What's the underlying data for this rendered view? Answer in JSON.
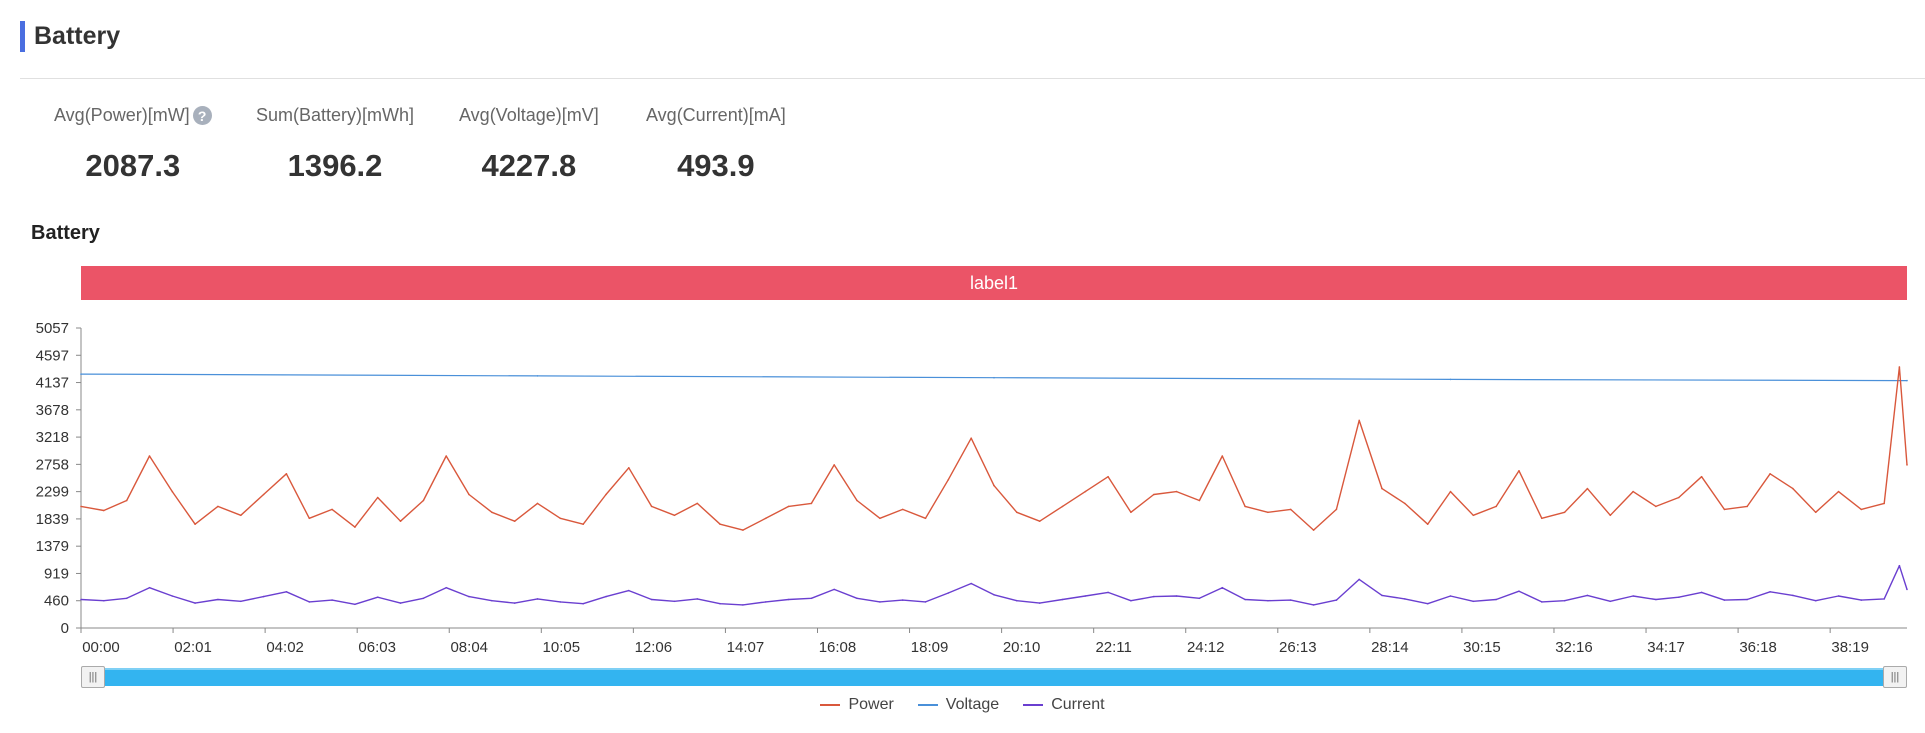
{
  "page": {
    "title": "Battery"
  },
  "metrics": [
    {
      "label": "Avg(Power)[mW]",
      "value": "2087.3",
      "help": true
    },
    {
      "label": "Sum(Battery)[mWh]",
      "value": "1396.2"
    },
    {
      "label": "Avg(Voltage)[mV]",
      "value": "4227.8"
    },
    {
      "label": "Avg(Current)[mA]",
      "value": "493.9"
    }
  ],
  "help_icon": {
    "glyph": "?",
    "icon": "question-circle-icon"
  },
  "chart_title": "Battery",
  "label_band": {
    "text": "label1",
    "color": "#eb5467"
  },
  "slider": {
    "start": 0,
    "end": 1,
    "handle_glyph": "|||"
  },
  "chart_data": {
    "type": "line",
    "title": "Battery",
    "y_ticks": [
      "5057",
      "4597",
      "4137",
      "3678",
      "3218",
      "2758",
      "2299",
      "1839",
      "1379",
      "919",
      "460",
      "0"
    ],
    "ylim": [
      0,
      5057
    ],
    "x_ticks": [
      "00:00",
      "02:01",
      "04:02",
      "06:03",
      "08:04",
      "10:05",
      "12:06",
      "14:07",
      "16:08",
      "18:09",
      "20:10",
      "22:11",
      "24:12",
      "26:13",
      "28:14",
      "30:15",
      "32:16",
      "34:17",
      "36:18",
      "38:19"
    ],
    "x_range_seconds": [
      0,
      2400
    ],
    "grid": false,
    "legend_position": "bottom",
    "series": [
      {
        "name": "Power",
        "color": "#d9583c",
        "x_seconds": [
          0,
          30,
          60,
          90,
          120,
          150,
          180,
          210,
          240,
          270,
          300,
          330,
          360,
          390,
          420,
          450,
          480,
          510,
          540,
          570,
          600,
          630,
          660,
          690,
          720,
          750,
          780,
          810,
          840,
          870,
          900,
          930,
          960,
          990,
          1020,
          1050,
          1080,
          1110,
          1140,
          1170,
          1200,
          1230,
          1260,
          1290,
          1320,
          1350,
          1380,
          1410,
          1440,
          1470,
          1500,
          1530,
          1560,
          1590,
          1620,
          1650,
          1680,
          1710,
          1740,
          1770,
          1800,
          1830,
          1860,
          1890,
          1920,
          1950,
          1980,
          2010,
          2040,
          2070,
          2100,
          2130,
          2160,
          2190,
          2220,
          2250,
          2280,
          2310,
          2340,
          2370,
          2390,
          2400
        ],
        "values": [
          2050,
          1980,
          2150,
          2900,
          2300,
          1750,
          2050,
          1900,
          2250,
          2600,
          1850,
          2000,
          1700,
          2200,
          1800,
          2150,
          2900,
          2250,
          1950,
          1800,
          2100,
          1850,
          1750,
          2250,
          2700,
          2050,
          1900,
          2100,
          1750,
          1650,
          1850,
          2050,
          2100,
          2750,
          2150,
          1850,
          2000,
          1850,
          2500,
          3200,
          2400,
          1950,
          1800,
          2050,
          2300,
          2550,
          1950,
          2250,
          2300,
          2150,
          2900,
          2050,
          1950,
          2000,
          1650,
          2000,
          3500,
          2350,
          2100,
          1750,
          2300,
          1900,
          2050,
          2650,
          1850,
          1950,
          2350,
          1900,
          2300,
          2050,
          2200,
          2550,
          2000,
          2050,
          2600,
          2350,
          1950,
          2300,
          2000,
          2100,
          4400,
          2750
        ]
      },
      {
        "name": "Voltage",
        "color": "#4a90d9",
        "x_seconds": [
          0,
          600,
          1200,
          1800,
          2400
        ],
        "values": [
          4280,
          4250,
          4220,
          4190,
          4170
        ]
      },
      {
        "name": "Current",
        "color": "#6a3fd0",
        "x_seconds": [
          0,
          30,
          60,
          90,
          120,
          150,
          180,
          210,
          240,
          270,
          300,
          330,
          360,
          390,
          420,
          450,
          480,
          510,
          540,
          570,
          600,
          630,
          660,
          690,
          720,
          750,
          780,
          810,
          840,
          870,
          900,
          930,
          960,
          990,
          1020,
          1050,
          1080,
          1110,
          1140,
          1170,
          1200,
          1230,
          1260,
          1290,
          1320,
          1350,
          1380,
          1410,
          1440,
          1470,
          1500,
          1530,
          1560,
          1590,
          1620,
          1650,
          1680,
          1710,
          1740,
          1770,
          1800,
          1830,
          1860,
          1890,
          1920,
          1950,
          1980,
          2010,
          2040,
          2070,
          2100,
          2130,
          2160,
          2190,
          2220,
          2250,
          2280,
          2310,
          2340,
          2370,
          2390,
          2400
        ],
        "values": [
          480,
          460,
          500,
          680,
          540,
          420,
          480,
          450,
          530,
          610,
          440,
          470,
          400,
          520,
          420,
          500,
          680,
          530,
          460,
          420,
          490,
          440,
          410,
          530,
          630,
          480,
          450,
          490,
          410,
          390,
          440,
          480,
          500,
          650,
          500,
          440,
          470,
          440,
          590,
          750,
          560,
          460,
          420,
          480,
          540,
          600,
          460,
          530,
          540,
          500,
          680,
          480,
          460,
          470,
          390,
          470,
          820,
          550,
          490,
          410,
          540,
          450,
          480,
          620,
          440,
          460,
          550,
          450,
          540,
          480,
          520,
          600,
          470,
          480,
          610,
          550,
          460,
          540,
          470,
          490,
          1050,
          650
        ]
      }
    ]
  }
}
